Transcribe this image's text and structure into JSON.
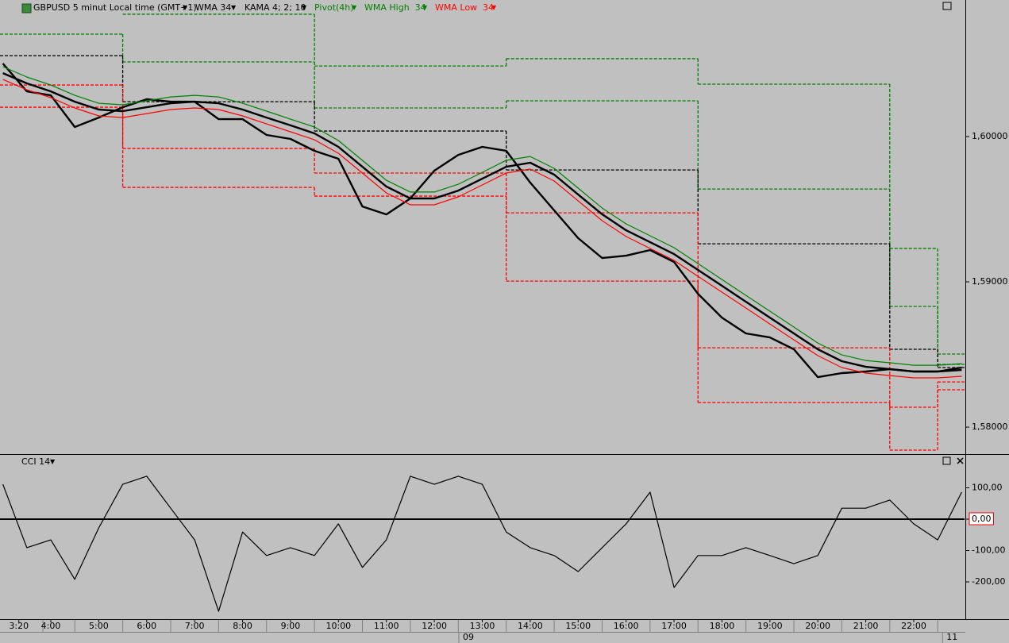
{
  "chart_data": [
    {
      "type": "line",
      "title": "GBPUSD 5 minut Local time (GMT+1)",
      "x": [
        3,
        3.5,
        4,
        4.5,
        5,
        5.5,
        6,
        6.5,
        7,
        7.5,
        8,
        8.5,
        9,
        9.5,
        10,
        10.5,
        11,
        11.5,
        12,
        12.5,
        13,
        13.5,
        14,
        14.5,
        15,
        15.5,
        16,
        16.5,
        17,
        17.5,
        18,
        18.5,
        19,
        19.5,
        20,
        20.5,
        21,
        21.5,
        22,
        22.5,
        23
      ],
      "xlim": [
        2.94,
        23.06
      ],
      "ylim": [
        1.5782,
        1.6094
      ],
      "yticks": [
        {
          "value": 1.58,
          "label": "1,58000"
        },
        {
          "value": 1.59,
          "label": "1,59000"
        },
        {
          "value": 1.6,
          "label": "1,60000"
        }
      ],
      "series": [
        {
          "name": "WMA 34",
          "color": "#000000",
          "values": [
            1.60437,
            1.60366,
            1.60311,
            1.6024,
            1.60186,
            1.60175,
            1.60202,
            1.60229,
            1.6024,
            1.60229,
            1.60186,
            1.60131,
            1.60077,
            1.60022,
            1.59929,
            1.59792,
            1.59656,
            1.59574,
            1.59574,
            1.59628,
            1.5971,
            1.59792,
            1.5982,
            1.59738,
            1.59601,
            1.59465,
            1.59355,
            1.59273,
            1.59191,
            1.59082,
            1.58973,
            1.58863,
            1.58754,
            1.58645,
            1.58536,
            1.58454,
            1.58415,
            1.58399,
            1.58383,
            1.58383,
            1.58394
          ]
        },
        {
          "name": "KAMA 4; 2; 10",
          "color": "#000000",
          "values": [
            1.60503,
            1.60311,
            1.60284,
            1.60066,
            1.60131,
            1.60202,
            1.60257,
            1.6024,
            1.6024,
            1.6012,
            1.6012,
            1.60011,
            1.59984,
            1.59902,
            1.59847,
            1.59519,
            1.59464,
            1.59574,
            1.59765,
            1.59874,
            1.59929,
            1.59902,
            1.59683,
            1.59492,
            1.59301,
            1.59164,
            1.5918,
            1.59219,
            1.59137,
            1.58918,
            1.58754,
            1.58645,
            1.58617,
            1.58536,
            1.58344,
            1.58372,
            1.58383,
            1.58399,
            1.58383,
            1.58383,
            1.5841
          ]
        },
        {
          "name": "WMA High  34",
          "color": "#008000",
          "values": [
            1.60481,
            1.6041,
            1.60355,
            1.60284,
            1.60229,
            1.60219,
            1.60246,
            1.60273,
            1.60284,
            1.60273,
            1.60229,
            1.60175,
            1.6012,
            1.60066,
            1.59973,
            1.59836,
            1.59699,
            1.59618,
            1.59618,
            1.59672,
            1.59754,
            1.59836,
            1.59863,
            1.59781,
            1.59645,
            1.59508,
            1.59399,
            1.59317,
            1.59235,
            1.59126,
            1.59016,
            1.58907,
            1.58798,
            1.58689,
            1.58579,
            1.58497,
            1.58459,
            1.58443,
            1.58426,
            1.58426,
            1.58437
          ]
        },
        {
          "name": "WMA Low  34",
          "color": "#ff0000",
          "values": [
            1.60393,
            1.60322,
            1.60268,
            1.60197,
            1.60142,
            1.60131,
            1.60158,
            1.60186,
            1.60197,
            1.60186,
            1.60142,
            1.60087,
            1.60033,
            1.59978,
            1.59885,
            1.59749,
            1.59612,
            1.5953,
            1.5953,
            1.59585,
            1.59667,
            1.59749,
            1.59776,
            1.59694,
            1.59557,
            1.59421,
            1.59312,
            1.5923,
            1.59148,
            1.59038,
            1.58929,
            1.5882,
            1.5871,
            1.58601,
            1.58492,
            1.5841,
            1.58372,
            1.58355,
            1.58339,
            1.58339,
            1.5835
          ]
        }
      ],
      "pivot": {
        "name": "Pivot(4h)",
        "color": "#008000",
        "edges": [
          2.94,
          5.5,
          9.5,
          13.5,
          17.5,
          21.5,
          22.5,
          23.06
        ],
        "levels": [
          {
            "color": "#008000",
            "values": [
              null,
              1.60842,
              1.60486,
              1.60536,
              1.60361,
              1.5923,
              1.58503
            ]
          },
          {
            "color": "#008000",
            "values": [
              1.60705,
              1.60514,
              1.60197,
              1.60246,
              1.59639,
              1.58831,
              1.58432
            ]
          },
          {
            "color": "#000000",
            "values": [
              1.60557,
              1.6024,
              1.60038,
              1.5977,
              1.59262,
              1.58536,
              1.5841
            ]
          },
          {
            "color": "#ff0000",
            "values": [
              1.60355,
              1.59918,
              1.59749,
              1.59475,
              1.58546,
              1.58137,
              1.58311
            ]
          },
          {
            "color": "#ff0000",
            "values": [
              1.60202,
              1.5965,
              1.5959,
              1.59005,
              1.58169,
              1.57842,
              1.58257
            ]
          }
        ]
      }
    },
    {
      "type": "line",
      "title": "CCI 14",
      "x": [
        3,
        3.5,
        4,
        4.5,
        5,
        5.5,
        6,
        6.5,
        7,
        7.5,
        8,
        8.5,
        9,
        9.5,
        10,
        10.5,
        11,
        11.5,
        12,
        12.5,
        13,
        13.5,
        14,
        14.5,
        15,
        15.5,
        16,
        16.5,
        17,
        17.5,
        18,
        18.5,
        19,
        19.5,
        20,
        20.5,
        21,
        21.5,
        22,
        22.5,
        23
      ],
      "xlim": [
        2.94,
        23.06
      ],
      "xticks": [
        {
          "value": 3.3333,
          "label": "3:20"
        },
        {
          "value": 4,
          "label": "4:00"
        },
        {
          "value": 5,
          "label": "5:00"
        },
        {
          "value": 6,
          "label": "6:00"
        },
        {
          "value": 7,
          "label": "7:00"
        },
        {
          "value": 8,
          "label": "8:00"
        },
        {
          "value": 9,
          "label": "9:00"
        },
        {
          "value": 10,
          "label": "10:00"
        },
        {
          "value": 11,
          "label": "11:00"
        },
        {
          "value": 12,
          "label": "12:00"
        },
        {
          "value": 13,
          "label": "13:00"
        },
        {
          "value": 14,
          "label": "14:00"
        },
        {
          "value": 15,
          "label": "15:00"
        },
        {
          "value": 16,
          "label": "16:00"
        },
        {
          "value": 17,
          "label": "17:00"
        },
        {
          "value": 18,
          "label": "18:00"
        },
        {
          "value": 19,
          "label": "19:00"
        },
        {
          "value": 20,
          "label": "20:00"
        },
        {
          "value": 21,
          "label": "21:00"
        },
        {
          "value": 22,
          "label": "22:00"
        }
      ],
      "date_labels": [
        {
          "value": 12.71,
          "label": "09"
        },
        {
          "value": 22.8,
          "label": "11"
        }
      ],
      "ylim": [
        -319,
        205
      ],
      "yticks": [
        {
          "value": 100,
          "label": "100,00"
        },
        {
          "value": 0,
          "label": "0,00"
        },
        {
          "value": -100,
          "label": "-100,00"
        },
        {
          "value": -200,
          "label": "-200,00"
        }
      ],
      "series": [
        {
          "color": "#000000",
          "values": [
            111,
            -91,
            -66,
            -192,
            -28,
            111,
            137,
            35,
            -66,
            -294,
            -41,
            -116,
            -91,
            -116,
            -15,
            -154,
            -66,
            137,
            111,
            137,
            111,
            -41,
            -91,
            -116,
            -167,
            -91,
            -15,
            86,
            -218,
            -116,
            -116,
            -91,
            -116,
            -142,
            -116,
            35,
            35,
            61,
            -15,
            -66,
            86
          ]
        }
      ]
    }
  ]
}
